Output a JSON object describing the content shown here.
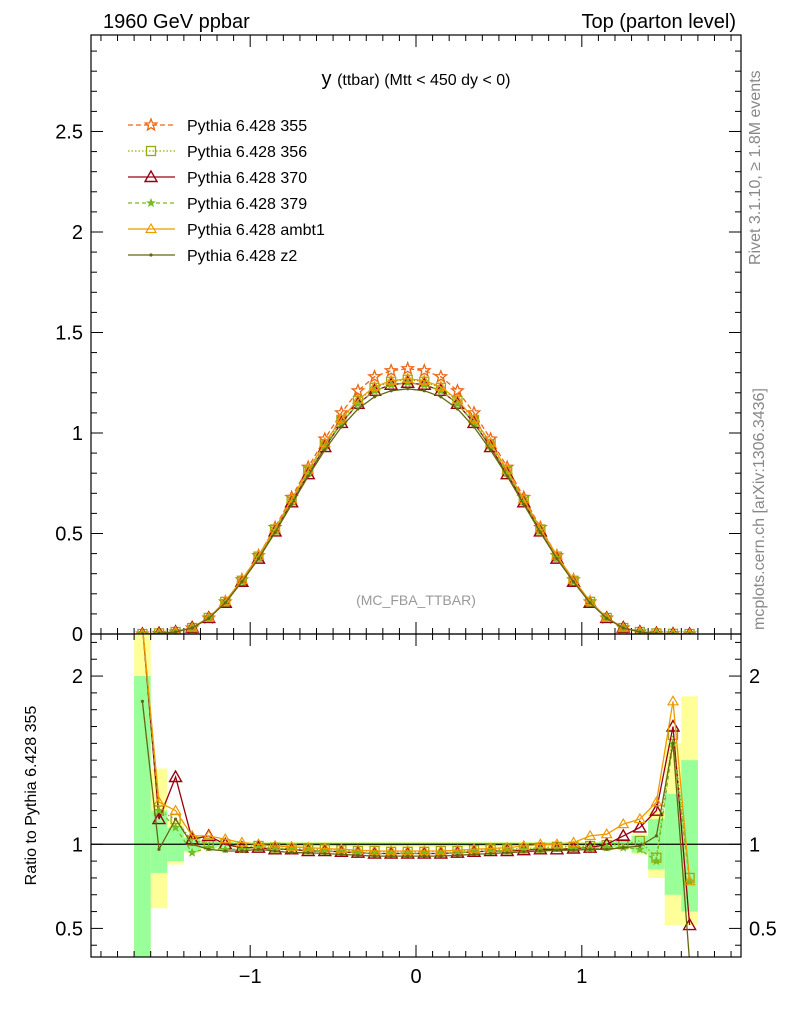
{
  "header": {
    "left": "1960 GeV ppbar",
    "right": "Top (parton level)"
  },
  "side_labels": {
    "rivet": "Rivet 3.1.10, ≥ 1.8M events",
    "mcplots": "mcplots.cern.ch [arXiv:1306.3436]"
  },
  "colors": {
    "band_inner": "#99ff99",
    "band_outer": "#ffff99",
    "axis": "#000000"
  },
  "chart_data": [
    {
      "type": "line",
      "title": "y (ttbar) (Mtt < 450 dy < 0)",
      "title_parts": {
        "main": "y",
        "rest": "(ttbar) (Mtt < 450 dy < 0)"
      },
      "watermark": "(MC_FBA_TTBAR)",
      "xlim": [
        -1.96,
        1.96
      ],
      "ylim": [
        0,
        2.98
      ],
      "yticks": [
        {
          "v": 0.5,
          "label": "0.5"
        },
        {
          "v": 1,
          "label": "1"
        },
        {
          "v": 1.5,
          "label": "1.5"
        },
        {
          "v": 2,
          "label": "2"
        },
        {
          "v": 2.5,
          "label": "2.5"
        }
      ],
      "bottom_tick_label": "0",
      "grid": false,
      "legend_position": "top-left",
      "x": [
        -1.65,
        -1.55,
        -1.45,
        -1.35,
        -1.25,
        -1.15,
        -1.05,
        -0.95,
        -0.85,
        -0.75,
        -0.65,
        -0.55,
        -0.45,
        -0.35,
        -0.25,
        -0.15,
        -0.05,
        0.05,
        0.15,
        0.25,
        0.35,
        0.45,
        0.55,
        0.65,
        0.75,
        0.85,
        0.95,
        1.05,
        1.15,
        1.25,
        1.35,
        1.45,
        1.55,
        1.65
      ],
      "series": [
        {
          "name": "Pythia 6.428 355",
          "color": "#ee6611",
          "dash": "5,3",
          "marker": "star",
          "values": [
            0.0,
            0.003,
            0.01,
            0.03,
            0.08,
            0.16,
            0.27,
            0.39,
            0.53,
            0.68,
            0.83,
            0.97,
            1.1,
            1.21,
            1.28,
            1.31,
            1.32,
            1.31,
            1.28,
            1.21,
            1.1,
            0.97,
            0.83,
            0.68,
            0.53,
            0.39,
            0.27,
            0.16,
            0.08,
            0.03,
            0.01,
            0.003,
            0.001,
            0.0
          ]
        },
        {
          "name": "Pythia 6.428 356",
          "color": "#99aa11",
          "dash": "1.5,2",
          "marker": "square",
          "values": [
            0.0,
            0.003,
            0.01,
            0.03,
            0.08,
            0.16,
            0.265,
            0.385,
            0.52,
            0.665,
            0.81,
            0.945,
            1.065,
            1.16,
            1.225,
            1.255,
            1.265,
            1.255,
            1.225,
            1.16,
            1.065,
            0.945,
            0.81,
            0.665,
            0.52,
            0.385,
            0.265,
            0.16,
            0.08,
            0.03,
            0.01,
            0.003,
            0.001,
            0.0
          ]
        },
        {
          "name": "Pythia 6.428 370",
          "color": "#990011",
          "dash": "",
          "marker": "triangle",
          "values": [
            0.0,
            0.004,
            0.011,
            0.032,
            0.08,
            0.155,
            0.26,
            0.375,
            0.51,
            0.655,
            0.795,
            0.93,
            1.05,
            1.145,
            1.21,
            1.24,
            1.25,
            1.24,
            1.21,
            1.145,
            1.05,
            0.93,
            0.795,
            0.655,
            0.51,
            0.375,
            0.26,
            0.155,
            0.08,
            0.032,
            0.011,
            0.004,
            0.001,
            0.0
          ]
        },
        {
          "name": "Pythia 6.428 379",
          "color": "#77bb22",
          "dash": "4,3",
          "marker": "smallstar",
          "values": [
            0.0,
            0.003,
            0.01,
            0.03,
            0.078,
            0.155,
            0.26,
            0.38,
            0.515,
            0.66,
            0.8,
            0.935,
            1.05,
            1.145,
            1.21,
            1.24,
            1.25,
            1.24,
            1.21,
            1.145,
            1.05,
            0.935,
            0.8,
            0.66,
            0.515,
            0.38,
            0.26,
            0.155,
            0.078,
            0.03,
            0.01,
            0.003,
            0.001,
            0.0
          ]
        },
        {
          "name": "Pythia 6.428 ambt1",
          "color": "#ee9900",
          "dash": "",
          "marker": "opentriangle",
          "values": [
            0.0,
            0.003,
            0.011,
            0.031,
            0.081,
            0.163,
            0.27,
            0.39,
            0.525,
            0.67,
            0.815,
            0.95,
            1.07,
            1.165,
            1.23,
            1.26,
            1.27,
            1.26,
            1.23,
            1.165,
            1.07,
            0.95,
            0.815,
            0.67,
            0.525,
            0.39,
            0.27,
            0.163,
            0.081,
            0.031,
            0.011,
            0.004,
            0.001,
            0.0
          ]
        },
        {
          "name": "Pythia 6.428 z2",
          "color": "#666611",
          "dash": "",
          "marker": "dot",
          "values": [
            0.0,
            0.003,
            0.01,
            0.03,
            0.078,
            0.155,
            0.26,
            0.375,
            0.505,
            0.645,
            0.785,
            0.915,
            1.03,
            1.12,
            1.18,
            1.21,
            1.22,
            1.21,
            1.18,
            1.12,
            1.03,
            0.915,
            0.785,
            0.645,
            0.505,
            0.375,
            0.26,
            0.155,
            0.078,
            0.03,
            0.01,
            0.003,
            0.001,
            0.0
          ]
        }
      ]
    },
    {
      "type": "line",
      "ylabel": "Ratio to Pythia 6.428 355",
      "xlim": [
        -1.96,
        1.96
      ],
      "ylim": [
        0.33,
        2.25
      ],
      "yticks": [
        {
          "v": 0.5,
          "label": "0.5"
        },
        {
          "v": 1,
          "label": "1"
        },
        {
          "v": 2,
          "label": "2"
        }
      ],
      "xticks": [
        {
          "v": -1,
          "label": "−1"
        },
        {
          "v": 0,
          "label": "0"
        },
        {
          "v": 1,
          "label": "1"
        }
      ],
      "reference_line": 1,
      "x": [
        -1.65,
        -1.55,
        -1.45,
        -1.35,
        -1.25,
        -1.15,
        -1.05,
        -0.95,
        -0.85,
        -0.75,
        -0.65,
        -0.55,
        -0.45,
        -0.35,
        -0.25,
        -0.15,
        -0.05,
        0.05,
        0.15,
        0.25,
        0.35,
        0.45,
        0.55,
        0.65,
        0.75,
        0.85,
        0.95,
        1.05,
        1.15,
        1.25,
        1.35,
        1.45,
        1.55,
        1.65
      ],
      "band_inner": [
        [
          0.3,
          2.0
        ],
        [
          0.83,
          1.2
        ],
        [
          0.9,
          1.1
        ],
        [
          0.96,
          1.04
        ],
        [
          0.98,
          1.02
        ],
        [
          0.985,
          1.015
        ],
        [
          0.99,
          1.01
        ],
        [
          0.99,
          1.01
        ],
        [
          0.99,
          1.01
        ],
        [
          0.99,
          1.01
        ],
        [
          0.99,
          1.01
        ],
        [
          0.99,
          1.01
        ],
        [
          0.99,
          1.01
        ],
        [
          0.99,
          1.01
        ],
        [
          0.99,
          1.01
        ],
        [
          0.99,
          1.01
        ],
        [
          0.99,
          1.01
        ],
        [
          0.99,
          1.01
        ],
        [
          0.99,
          1.01
        ],
        [
          0.99,
          1.01
        ],
        [
          0.99,
          1.01
        ],
        [
          0.99,
          1.01
        ],
        [
          0.99,
          1.01
        ],
        [
          0.99,
          1.01
        ],
        [
          0.99,
          1.01
        ],
        [
          0.99,
          1.01
        ],
        [
          0.99,
          1.01
        ],
        [
          0.99,
          1.01
        ],
        [
          0.985,
          1.015
        ],
        [
          0.975,
          1.025
        ],
        [
          0.95,
          1.05
        ],
        [
          0.85,
          1.15
        ],
        [
          0.7,
          1.3
        ],
        [
          0.6,
          1.5
        ]
      ],
      "band_outer": [
        [
          0.3,
          2.3
        ],
        [
          0.62,
          1.45
        ],
        [
          0.88,
          1.15
        ],
        [
          0.95,
          1.05
        ],
        [
          0.975,
          1.025
        ],
        [
          0.98,
          1.02
        ],
        [
          0.985,
          1.015
        ],
        [
          0.985,
          1.015
        ],
        [
          0.985,
          1.015
        ],
        [
          0.985,
          1.015
        ],
        [
          0.985,
          1.015
        ],
        [
          0.985,
          1.015
        ],
        [
          0.985,
          1.015
        ],
        [
          0.985,
          1.015
        ],
        [
          0.985,
          1.015
        ],
        [
          0.985,
          1.015
        ],
        [
          0.985,
          1.015
        ],
        [
          0.985,
          1.015
        ],
        [
          0.985,
          1.015
        ],
        [
          0.985,
          1.015
        ],
        [
          0.985,
          1.015
        ],
        [
          0.985,
          1.015
        ],
        [
          0.985,
          1.015
        ],
        [
          0.985,
          1.015
        ],
        [
          0.985,
          1.015
        ],
        [
          0.985,
          1.015
        ],
        [
          0.985,
          1.015
        ],
        [
          0.985,
          1.015
        ],
        [
          0.98,
          1.02
        ],
        [
          0.97,
          1.03
        ],
        [
          0.94,
          1.06
        ],
        [
          0.8,
          1.2
        ],
        [
          0.52,
          1.6
        ],
        [
          0.52,
          1.88
        ]
      ],
      "series": [
        {
          "name": "Pythia 6.428 356",
          "color": "#99aa11",
          "dash": "1.5,2",
          "marker": "square",
          "values": [
            2.3,
            1.2,
            1.15,
            1.02,
            1.01,
            1.0,
            0.98,
            0.99,
            0.98,
            0.975,
            0.97,
            0.97,
            0.965,
            0.96,
            0.96,
            0.955,
            0.955,
            0.955,
            0.96,
            0.96,
            0.965,
            0.97,
            0.97,
            0.975,
            0.98,
            0.985,
            0.985,
            0.99,
            0.995,
            1.0,
            1.02,
            0.92,
            1.65,
            0.8
          ]
        },
        {
          "name": "Pythia 6.428 370",
          "color": "#990011",
          "dash": "",
          "marker": "triangle",
          "values": [
            2.3,
            1.15,
            1.4,
            1.03,
            1.05,
            1.0,
            0.98,
            0.98,
            0.97,
            0.97,
            0.96,
            0.96,
            0.955,
            0.95,
            0.945,
            0.945,
            0.945,
            0.945,
            0.945,
            0.95,
            0.955,
            0.96,
            0.96,
            0.965,
            0.97,
            0.97,
            0.975,
            0.98,
            1.0,
            1.05,
            1.1,
            1.2,
            1.7,
            0.52
          ]
        },
        {
          "name": "Pythia 6.428 379",
          "color": "#77bb22",
          "dash": "4,3",
          "marker": "smallstar",
          "values": [
            2.3,
            1.2,
            1.1,
            0.95,
            0.98,
            0.97,
            0.97,
            0.98,
            0.975,
            0.97,
            0.965,
            0.96,
            0.955,
            0.95,
            0.945,
            0.945,
            0.945,
            0.945,
            0.945,
            0.95,
            0.955,
            0.96,
            0.965,
            0.97,
            0.975,
            0.975,
            0.975,
            0.975,
            0.98,
            0.98,
            0.97,
            0.9,
            1.6,
            0.78
          ]
        },
        {
          "name": "Pythia 6.428 ambt1",
          "color": "#ee9900",
          "dash": "",
          "marker": "opentriangle",
          "values": [
            2.3,
            1.25,
            1.2,
            1.05,
            1.05,
            1.03,
            1.01,
            1.0,
            0.99,
            0.985,
            0.98,
            0.975,
            0.97,
            0.965,
            0.96,
            0.96,
            0.96,
            0.96,
            0.96,
            0.965,
            0.97,
            0.975,
            0.98,
            0.99,
            1.0,
            1.0,
            1.01,
            1.05,
            1.06,
            1.12,
            1.15,
            1.25,
            1.85,
            0.78
          ]
        },
        {
          "name": "Pythia 6.428 z2",
          "color": "#666611",
          "dash": "",
          "marker": "dot",
          "values": [
            1.85,
            0.97,
            1.15,
            1.0,
            0.97,
            0.96,
            0.96,
            0.97,
            0.96,
            0.95,
            0.95,
            0.945,
            0.94,
            0.935,
            0.93,
            0.93,
            0.93,
            0.93,
            0.93,
            0.935,
            0.94,
            0.945,
            0.95,
            0.955,
            0.96,
            0.965,
            0.965,
            0.97,
            0.97,
            0.98,
            0.99,
            1.05,
            1.6,
            0.3
          ]
        }
      ]
    }
  ]
}
